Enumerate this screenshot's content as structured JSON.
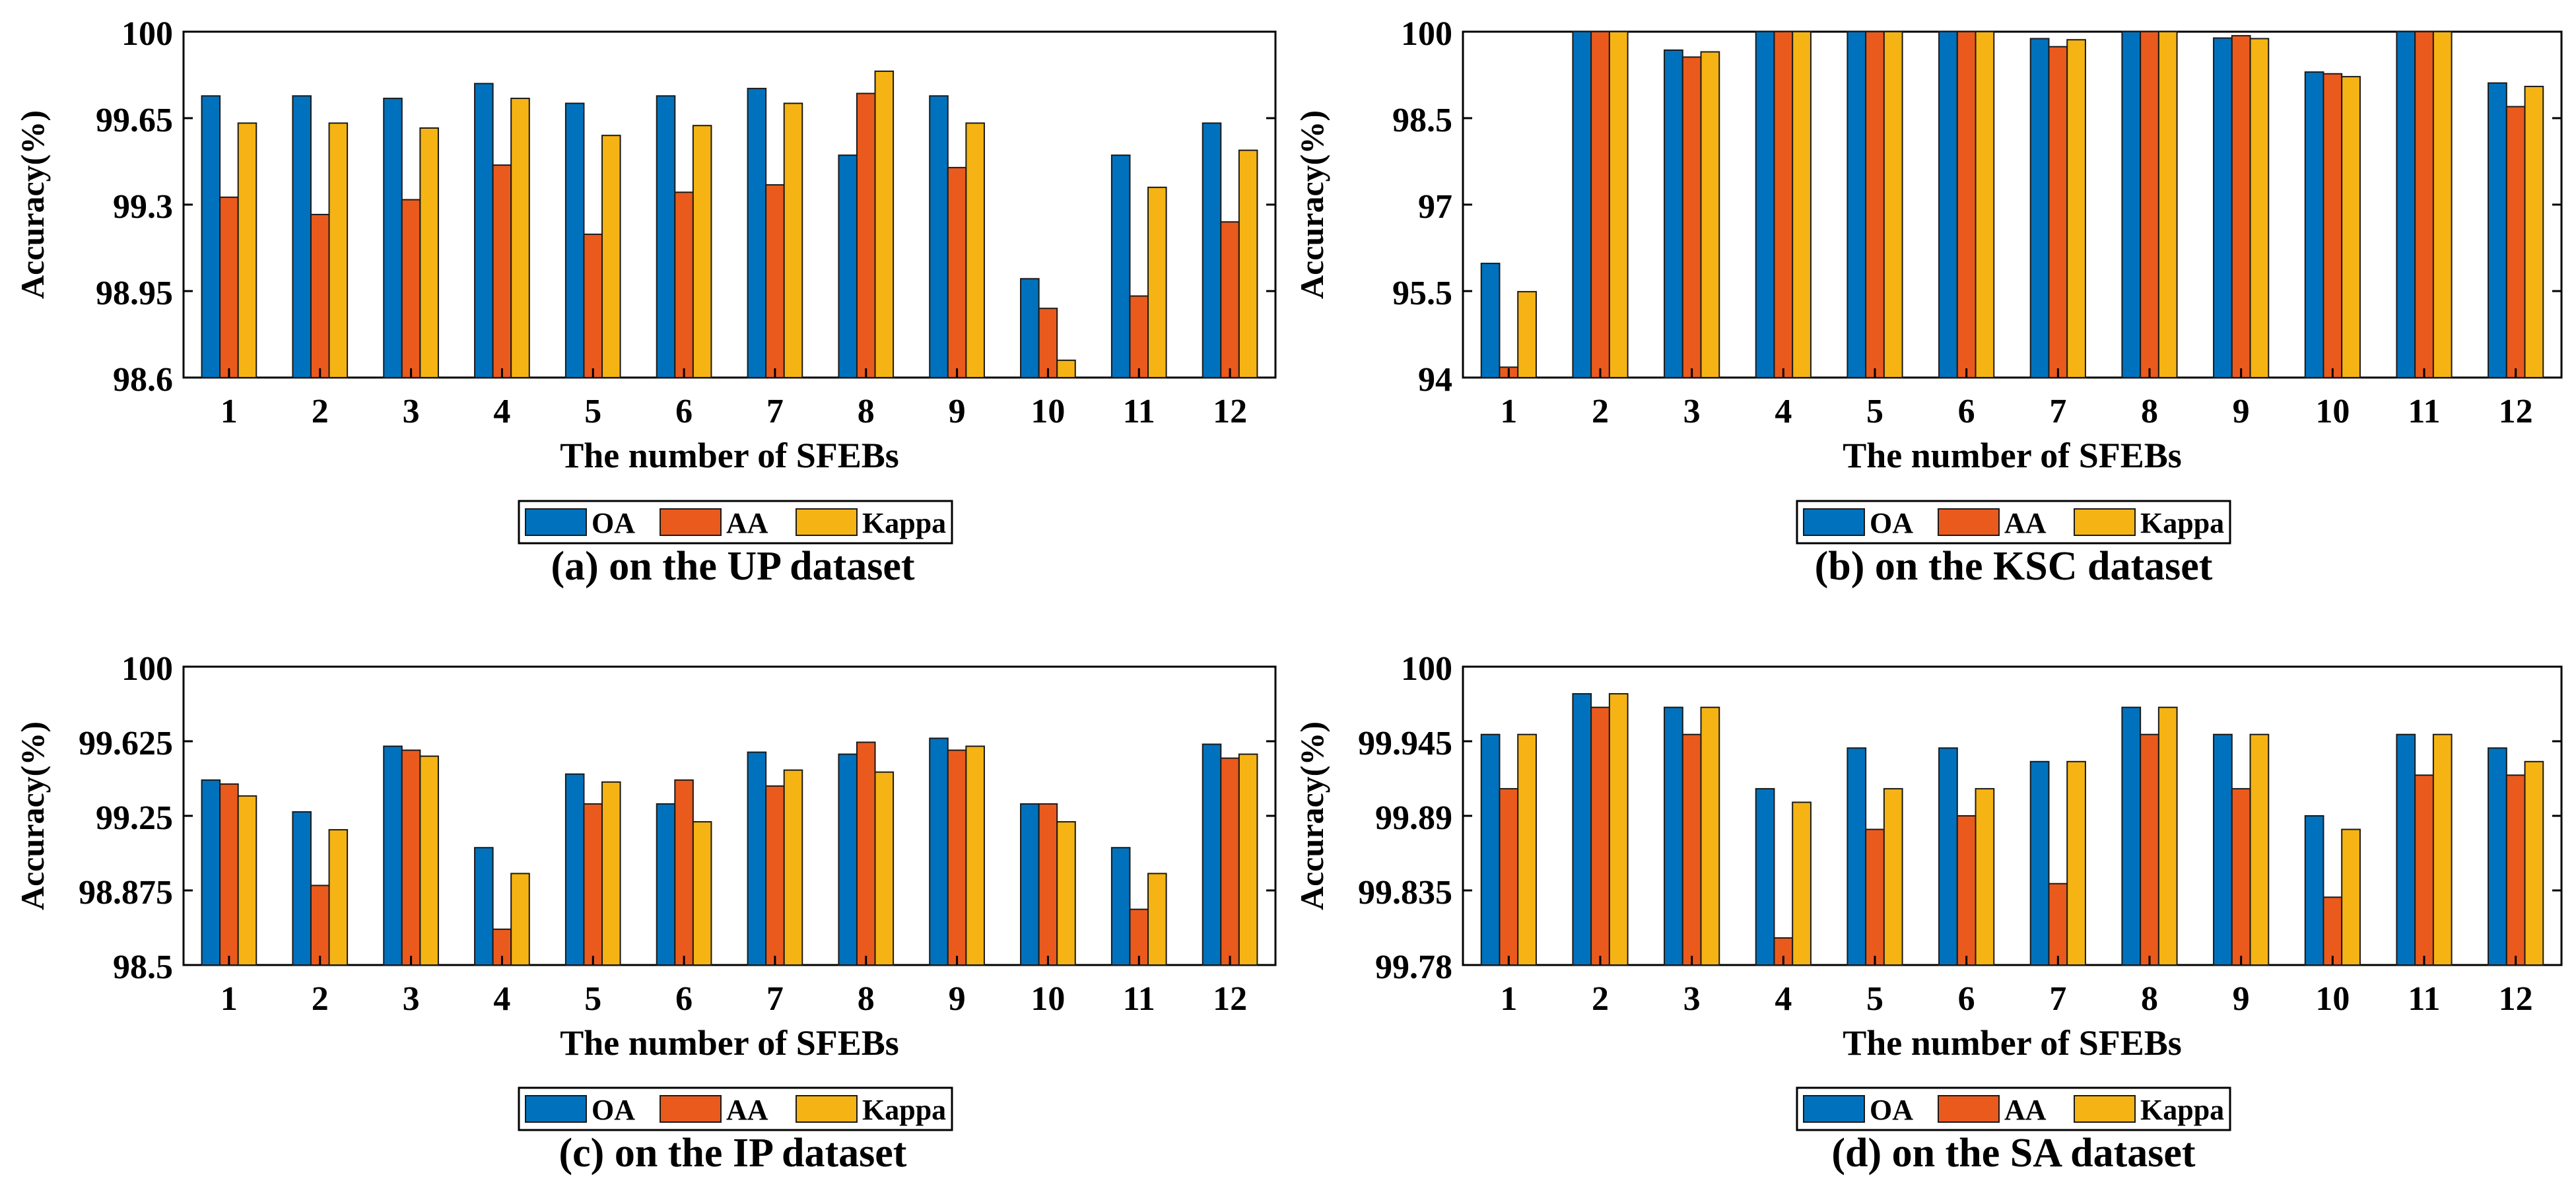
{
  "colors": {
    "oa": "#0072BD",
    "aa": "#EA5A1D",
    "kappa": "#F5B414",
    "axis": "#000000"
  },
  "chart_data": [
    {
      "type": "bar",
      "caption": "(a) on the UP dataset",
      "xlabel": "The number of SFEBs",
      "ylabel": "Accuracy(%)",
      "ylim": [
        98.6,
        100
      ],
      "yticks": [
        "98.6",
        "98.95",
        "99.3",
        "99.65",
        "100"
      ],
      "categories": [
        "1",
        "2",
        "3",
        "4",
        "5",
        "6",
        "7",
        "8",
        "9",
        "10",
        "11",
        "12"
      ],
      "legend_position": "bottom-center",
      "series": [
        {
          "name": "OA",
          "values": [
            99.74,
            99.74,
            99.73,
            99.79,
            99.71,
            99.74,
            99.77,
            99.5,
            99.74,
            99.0,
            99.5,
            99.63
          ]
        },
        {
          "name": "AA",
          "values": [
            99.33,
            99.26,
            99.32,
            99.46,
            99.18,
            99.35,
            99.38,
            99.75,
            99.45,
            98.88,
            98.93,
            99.23
          ]
        },
        {
          "name": "Kappa",
          "values": [
            99.63,
            99.63,
            99.61,
            99.73,
            99.58,
            99.62,
            99.71,
            99.84,
            99.63,
            98.67,
            99.37,
            99.52
          ]
        }
      ]
    },
    {
      "type": "bar",
      "caption": "(b) on the KSC dataset",
      "xlabel": "The number of SFEBs",
      "ylabel": "Accuracy(%)",
      "ylim": [
        94,
        100
      ],
      "yticks": [
        "94",
        "95.5",
        "97",
        "98.5",
        "100"
      ],
      "categories": [
        "1",
        "2",
        "3",
        "4",
        "5",
        "6",
        "7",
        "8",
        "9",
        "10",
        "11",
        "12"
      ],
      "legend_position": "bottom-center",
      "series": [
        {
          "name": "OA",
          "values": [
            95.98,
            100,
            99.68,
            100,
            100,
            100,
            99.88,
            100,
            99.89,
            99.3,
            100,
            99.11
          ]
        },
        {
          "name": "AA",
          "values": [
            94.18,
            100,
            99.56,
            100,
            100,
            100,
            99.74,
            100,
            99.93,
            99.27,
            100,
            98.7
          ]
        },
        {
          "name": "Kappa",
          "values": [
            95.49,
            100,
            99.65,
            100,
            100,
            100,
            99.86,
            100,
            99.88,
            99.22,
            100,
            99.05
          ]
        }
      ]
    },
    {
      "type": "bar",
      "caption": "(c) on the IP dataset",
      "xlabel": "The number of SFEBs",
      "ylabel": "Accuracy(%)",
      "ylim": [
        98.5,
        100
      ],
      "yticks": [
        "98.5",
        "98.875",
        "99.25",
        "99.625",
        "100"
      ],
      "categories": [
        "1",
        "2",
        "3",
        "4",
        "5",
        "6",
        "7",
        "8",
        "9",
        "10",
        "11",
        "12"
      ],
      "legend_position": "bottom-center",
      "series": [
        {
          "name": "OA",
          "values": [
            99.43,
            99.27,
            99.6,
            99.09,
            99.46,
            99.31,
            99.57,
            99.56,
            99.64,
            99.31,
            99.09,
            99.61
          ]
        },
        {
          "name": "AA",
          "values": [
            99.41,
            98.9,
            99.58,
            98.68,
            99.31,
            99.43,
            99.4,
            99.62,
            99.58,
            99.31,
            98.78,
            99.54
          ]
        },
        {
          "name": "Kappa",
          "values": [
            99.35,
            99.18,
            99.55,
            98.96,
            99.42,
            99.22,
            99.48,
            99.47,
            99.6,
            99.22,
            98.96,
            99.56
          ]
        }
      ]
    },
    {
      "type": "bar",
      "caption": "(d) on the SA dataset",
      "xlabel": "The number of SFEBs",
      "ylabel": "Accuracy(%)",
      "ylim": [
        99.78,
        100
      ],
      "yticks": [
        "99.78",
        "99.835",
        "99.89",
        "99.945",
        "100"
      ],
      "categories": [
        "1",
        "2",
        "3",
        "4",
        "5",
        "6",
        "7",
        "8",
        "9",
        "10",
        "11",
        "12"
      ],
      "legend_position": "bottom-center",
      "series": [
        {
          "name": "OA",
          "values": [
            99.95,
            99.98,
            99.97,
            99.91,
            99.94,
            99.94,
            99.93,
            99.97,
            99.95,
            99.89,
            99.95,
            99.94
          ]
        },
        {
          "name": "AA",
          "values": [
            99.91,
            99.97,
            99.95,
            99.8,
            99.88,
            99.89,
            99.84,
            99.95,
            99.91,
            99.83,
            99.92,
            99.92
          ]
        },
        {
          "name": "Kappa",
          "values": [
            99.95,
            99.98,
            99.97,
            99.9,
            99.91,
            99.91,
            99.93,
            99.97,
            99.95,
            99.88,
            99.95,
            99.93
          ]
        }
      ]
    }
  ]
}
